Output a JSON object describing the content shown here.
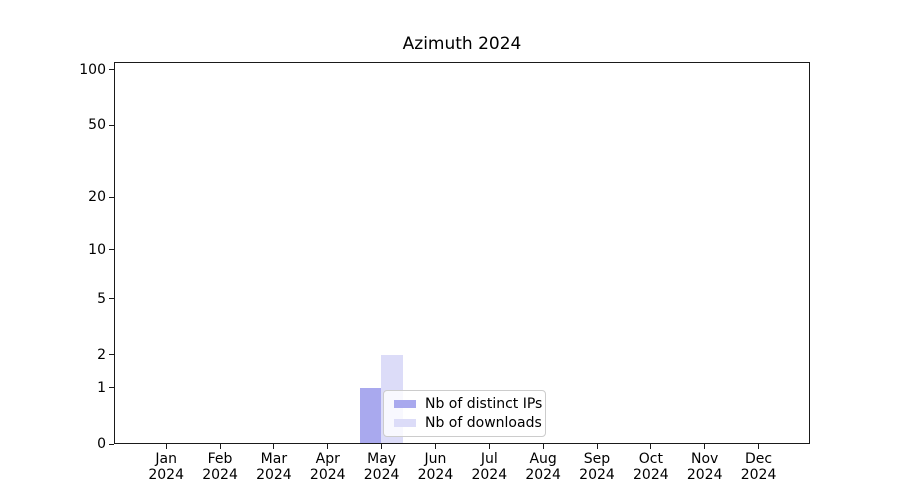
{
  "figure": {
    "title": "Azimuth 2024"
  },
  "chart_data": {
    "type": "bar",
    "title": "Azimuth 2024",
    "x": {
      "categories": [
        "Jan",
        "Feb",
        "Mar",
        "Apr",
        "May",
        "Jun",
        "Jul",
        "Aug",
        "Sep",
        "Oct",
        "Nov",
        "Dec"
      ],
      "year": "2024"
    },
    "series": [
      {
        "name": "Nb of distinct IPs",
        "color": "#a9a9ee",
        "values": [
          0,
          0,
          0,
          0,
          1,
          0,
          0,
          0,
          0,
          0,
          0,
          0
        ]
      },
      {
        "name": "Nb of downloads",
        "color": "#dcdcf8",
        "values": [
          0,
          0,
          0,
          0,
          2,
          0,
          0,
          0,
          0,
          0,
          0,
          0
        ]
      }
    ],
    "yscale": "log1p",
    "ylim": [
      0,
      110
    ],
    "y_major_ticks": [
      100,
      50,
      20,
      10,
      5,
      2,
      1,
      0
    ],
    "y_minor_gridlines": [
      90,
      80,
      70,
      60,
      40,
      30,
      9,
      8,
      7,
      6,
      4,
      3
    ],
    "grid": "horizontal",
    "legend": {
      "position": "lower-center",
      "labels": [
        "Nb of distinct IPs",
        "Nb of downloads"
      ]
    },
    "colors": {
      "grid_major": "#d5d5d5",
      "grid_minor": "#ededed",
      "axis": "#1a1a1a",
      "text": "#000000"
    }
  }
}
